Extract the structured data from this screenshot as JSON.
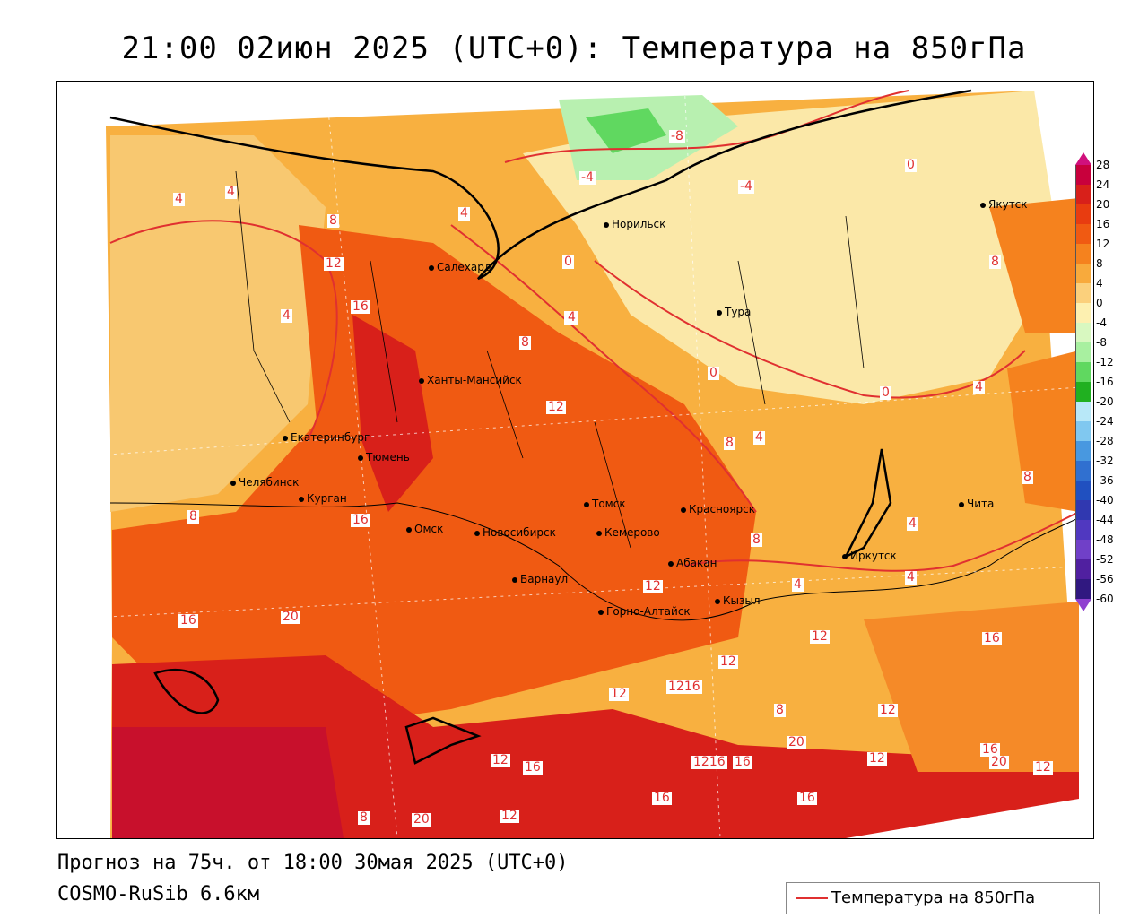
{
  "title": "21:00 02июн 2025 (UTC+0): Температура на 850гПа",
  "footer": {
    "forecast": "Прогноз на 75ч. от 18:00 30мая 2025 (UTC+0)",
    "model": "COSMO-RuSib 6.6км"
  },
  "legend": {
    "label": "Температура на 850гПа",
    "color": "#e03030"
  },
  "colorbar": {
    "ticks": [
      "28",
      "24",
      "20",
      "16",
      "12",
      "8",
      "4",
      "0",
      "-4",
      "-8",
      "-12",
      "-16",
      "-20",
      "-24",
      "-28",
      "-32",
      "-36",
      "-40",
      "-44",
      "-48",
      "-52",
      "-56",
      "-60"
    ],
    "colors": [
      "#c8003c",
      "#d8201a",
      "#e83c10",
      "#f05a12",
      "#f5821e",
      "#f8aa3c",
      "#fbd07c",
      "#fdf0b0",
      "#d8f8c0",
      "#a8f0a0",
      "#60d860",
      "#20b020",
      "#b8e8f8",
      "#80c8f0",
      "#4898e0",
      "#3070d0",
      "#2050c0",
      "#3038b0",
      "#5038c0",
      "#7040c8",
      "#5020a0",
      "#301880"
    ]
  },
  "cities": [
    {
      "name": "Норильск"
    },
    {
      "name": "Якутск"
    },
    {
      "name": "Салехард"
    },
    {
      "name": "Тура"
    },
    {
      "name": "Ханты-Мансийск"
    },
    {
      "name": "Екатеринбург"
    },
    {
      "name": "Тюмень"
    },
    {
      "name": "Челябинск"
    },
    {
      "name": "Курган"
    },
    {
      "name": "Омск"
    },
    {
      "name": "Томск"
    },
    {
      "name": "Красноярск"
    },
    {
      "name": "Новосибирск"
    },
    {
      "name": "Кемерово"
    },
    {
      "name": "Абакан"
    },
    {
      "name": "Иркутск"
    },
    {
      "name": "Чита"
    },
    {
      "name": "Барнаул"
    },
    {
      "name": "Кызыл"
    },
    {
      "name": "Горно-Алтайск"
    }
  ],
  "contour_labels": [
    "-8",
    "-4",
    "-4",
    "0",
    "4",
    "4",
    "4",
    "4",
    "4",
    "8",
    "12",
    "16",
    "0",
    "4",
    "8",
    "0",
    "0",
    "4",
    "12",
    "8",
    "4",
    "8",
    "8",
    "4",
    "4",
    "4",
    "8",
    "16",
    "8",
    "16",
    "20",
    "12",
    "1216",
    "12",
    "12",
    "8",
    "12",
    "12",
    "16",
    "1216",
    "16",
    "20",
    "12",
    "16",
    "20",
    "12",
    "16",
    "16",
    "8",
    "20",
    "12",
    "16",
    "12"
  ]
}
